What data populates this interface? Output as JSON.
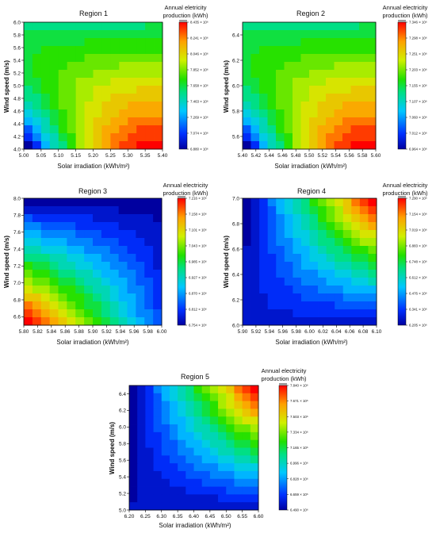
{
  "chart_data": [
    {
      "type": "heatmap",
      "title": "Region 1",
      "xlabel": "Solar irradiation (kWh/m²)",
      "ylabel": "Wind speed (m/s)",
      "colorbar_title": [
        "Annual eletricity",
        "production (kWh)"
      ],
      "xlim": [
        5.0,
        5.4
      ],
      "ylim": [
        4.0,
        6.0
      ],
      "xticks": [
        "5.00",
        "5.05",
        "5.10",
        "5.15",
        "5.20",
        "5.25",
        "5.30",
        "5.35",
        "5.40"
      ],
      "yticks": [
        "4.0",
        "4.2",
        "4.4",
        "4.6",
        "4.8",
        "5.0",
        "5.2",
        "5.4",
        "5.6",
        "5.8",
        "6.0"
      ],
      "colorbar_labels": [
        "8.435 × 10⁶",
        "8.241 × 10⁶",
        "8.046 × 10⁶",
        "7.852 × 10⁶",
        "7.658 × 10⁶",
        "7.463 × 10⁶",
        "7.269 × 10⁶",
        "7.074 × 10⁶",
        "6.880 × 10⁶"
      ],
      "vmin": 6.88,
      "vmax": 8.435,
      "field": {
        "a": 0.1,
        "b": 1.9,
        "c": -0.37,
        "d": -3.4
      }
    },
    {
      "type": "heatmap",
      "title": "Region 2",
      "xlabel": "Solar irradiation (kWh/m²)",
      "ylabel": "Wind speed (m/s)",
      "colorbar_title": [
        "Annual electricity",
        "production (kWh)"
      ],
      "xlim": [
        5.4,
        5.6
      ],
      "ylim": [
        5.5,
        6.5
      ],
      "xticks": [
        "5.40",
        "5.42",
        "5.44",
        "5.46",
        "5.48",
        "5.50",
        "5.52",
        "5.54",
        "5.56",
        "5.58",
        "5.60"
      ],
      "yticks": [
        "5.6",
        "5.8",
        "6.0",
        "6.2",
        "6.4"
      ],
      "colorbar_labels": [
        "7.346 × 10⁶",
        "7.298 × 10⁶",
        "7.251 × 10⁶",
        "7.203 × 10⁶",
        "7.155 × 10⁶",
        "7.107 × 10⁶",
        "7.060 × 10⁶",
        "7.012 × 10⁶",
        "6.964 × 10⁶"
      ],
      "vmin": 6.964,
      "vmax": 7.346,
      "field": {
        "a": 0.1,
        "b": 1.9,
        "c": -0.37,
        "d": -3.4
      }
    },
    {
      "type": "heatmap",
      "title": "Region 3",
      "xlabel": "Solar irradiation (kWh/m²)",
      "ylabel": "Wind speed (m/s)",
      "colorbar_title": [
        "Annual electricity",
        "production (kWh)"
      ],
      "xlim": [
        5.8,
        6.0
      ],
      "ylim": [
        6.5,
        8.0
      ],
      "xticks": [
        "5.80",
        "5.82",
        "5.84",
        "5.86",
        "5.88",
        "5.90",
        "5.92",
        "5.94",
        "5.96",
        "5.98",
        "6.00"
      ],
      "yticks": [
        "6.6",
        "6.8",
        "7.0",
        "7.2",
        "7.4",
        "7.6",
        "7.8",
        "8.0"
      ],
      "colorbar_labels": [
        "7.216 × 10⁶",
        "7.158 × 10⁶",
        "7.101 × 10⁶",
        "7.043 × 10⁶",
        "6.985 × 10⁶",
        "6.927 × 10⁶",
        "6.870 × 10⁶",
        "6.812 × 10⁶",
        "6.754 × 10⁶"
      ],
      "vmin": 6.754,
      "vmax": 7.216,
      "field": {
        "a": 0.02,
        "b": 1.05,
        "c": -0.92,
        "d": 0
      }
    },
    {
      "type": "heatmap",
      "title": "Region 4",
      "xlabel": "Solar irradiation (kWh/m²)",
      "ylabel": "Wind speed (m/s)",
      "colorbar_title": [
        "Annual electricity",
        "production (kWh)"
      ],
      "xlim": [
        5.9,
        6.1
      ],
      "ylim": [
        6.0,
        7.0
      ],
      "xticks": [
        "5.90",
        "5.92",
        "5.94",
        "5.96",
        "5.98",
        "6.00",
        "6.02",
        "6.04",
        "6.06",
        "6.08",
        "6.10"
      ],
      "yticks": [
        "6.0",
        "6.2",
        "6.4",
        "6.6",
        "6.8",
        "7.0"
      ],
      "colorbar_labels": [
        "7.290 × 10⁶",
        "7.154 × 10⁶",
        "7.019 × 10⁶",
        "6.883 × 10⁶",
        "6.748 × 10⁶",
        "6.612 × 10⁶",
        "6.476 × 10⁶",
        "6.341 × 10⁶",
        "6.205 × 10⁶"
      ],
      "vmin": 6.205,
      "vmax": 7.29,
      "field": {
        "a": 1.0,
        "b": 0.1,
        "c": -1.05,
        "d": 0
      }
    },
    {
      "type": "heatmap",
      "title": "Region 5",
      "xlabel": "Solar irradiation (kWh/m²)",
      "ylabel": "Wind speed (m/s)",
      "colorbar_title": [
        "Annual electricity",
        "production (kWh)"
      ],
      "xlim": [
        6.2,
        6.6
      ],
      "ylim": [
        5.0,
        6.5
      ],
      "xticks": [
        "6.20",
        "6.25",
        "6.30",
        "6.35",
        "6.40",
        "6.45",
        "6.50",
        "6.55",
        "6.60"
      ],
      "yticks": [
        "5.0",
        "5.2",
        "5.4",
        "5.6",
        "5.8",
        "6.0",
        "6.2",
        "6.4"
      ],
      "colorbar_labels": [
        "7.840 × 10⁶",
        "7.671 × 10⁶",
        "7.503 × 10⁶",
        "7.334 × 10⁶",
        "7.165 × 10⁶",
        "6.996 × 10⁶",
        "6.828 × 10⁶",
        "6.659 × 10⁶",
        "6.490 × 10⁶"
      ],
      "vmin": 6.49,
      "vmax": 7.84,
      "field": {
        "a": 1.0,
        "b": 0.06,
        "c": -1.02,
        "d": 0
      }
    }
  ]
}
